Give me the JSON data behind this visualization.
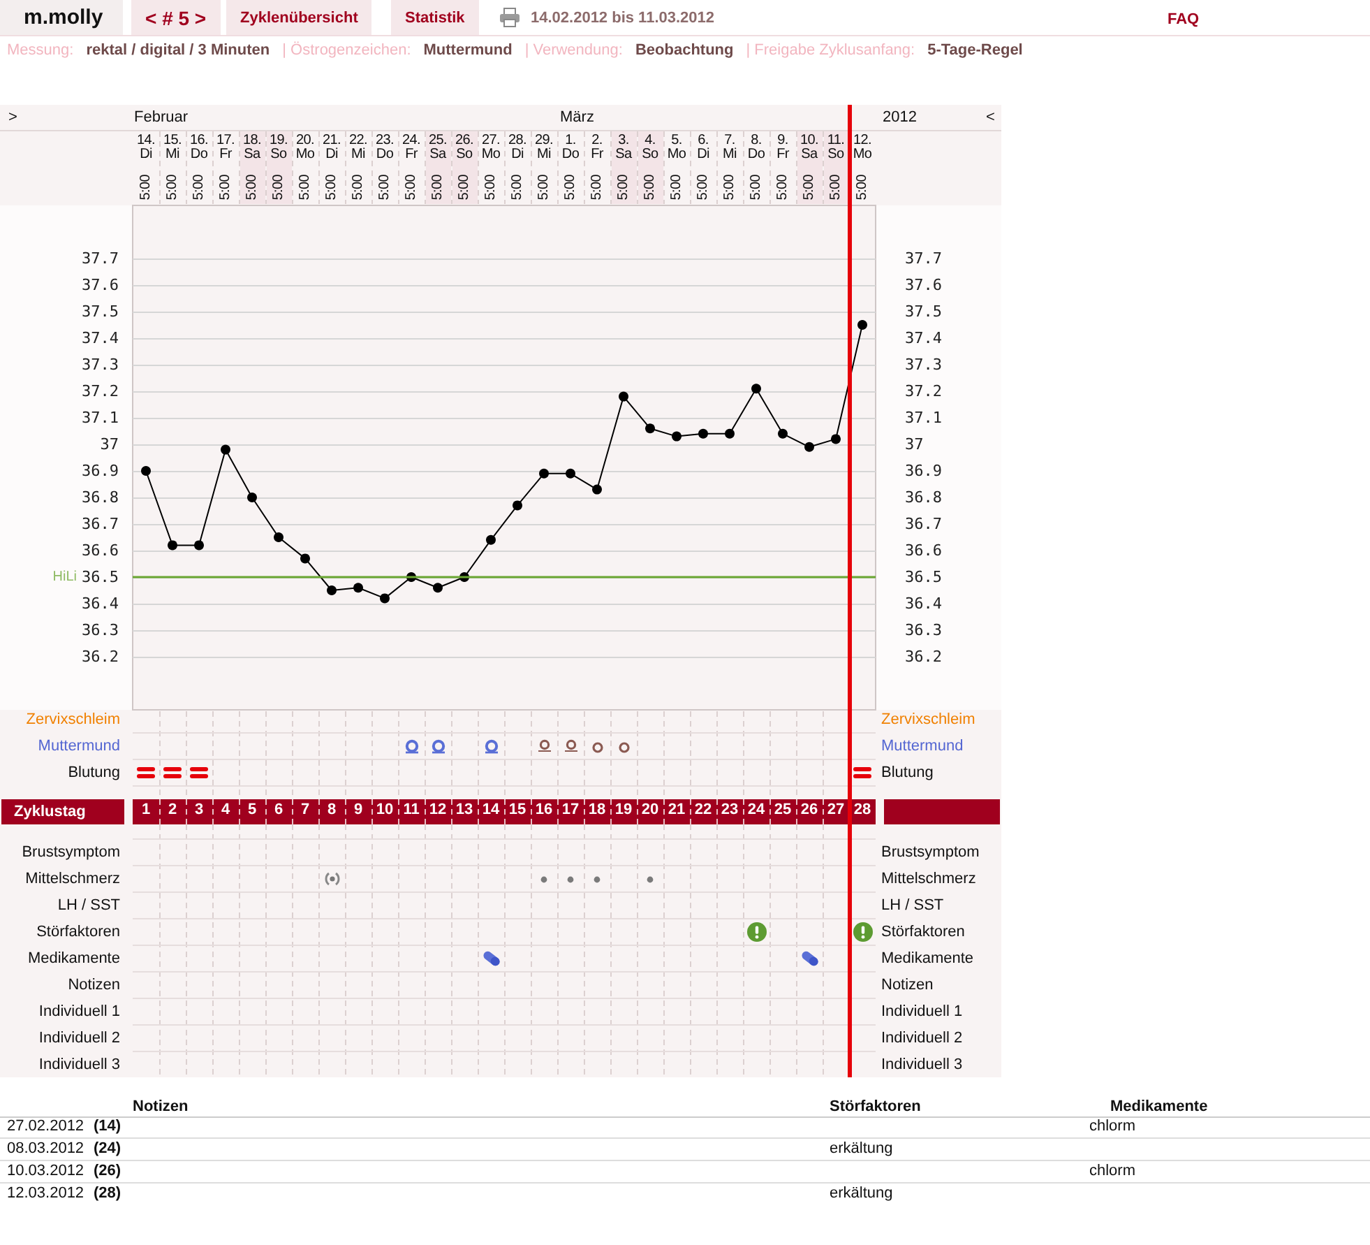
{
  "chart_data": {
    "type": "line",
    "title": "m.molly",
    "subtitle": "14.02.2012 bis 11.03.2012",
    "x": [
      1,
      2,
      3,
      4,
      5,
      6,
      7,
      8,
      9,
      10,
      11,
      12,
      13,
      14,
      15,
      16,
      17,
      18,
      19,
      20,
      21,
      22,
      23,
      24,
      25,
      26,
      27,
      28
    ],
    "values": [
      36.9,
      36.62,
      36.62,
      36.98,
      36.8,
      36.65,
      36.57,
      36.45,
      36.46,
      36.42,
      36.5,
      36.46,
      36.5,
      36.64,
      36.77,
      36.89,
      36.89,
      36.83,
      37.18,
      37.06,
      37.03,
      37.04,
      37.04,
      37.21,
      37.04,
      36.99,
      37.02,
      37.45
    ],
    "color": "#000000",
    "marker": "circle",
    "line_style": "solid",
    "xlim": [
      0.5,
      28.5
    ],
    "xticks": [
      1,
      2,
      3,
      4,
      5,
      6,
      7,
      8,
      9,
      10,
      11,
      12,
      13,
      14,
      15,
      16,
      17,
      18,
      19,
      20,
      21,
      22,
      23,
      24,
      25,
      26,
      27,
      28
    ],
    "x2lim": [
      "2012-02-13T17:00",
      "2012-03-12T17:00"
    ],
    "x2ticks": [
      {
        "value": "2012-02-14T05:00",
        "label": "14. Di 5:00"
      },
      {
        "value": "2012-02-15T05:00",
        "label": "15. Mi 5:00"
      },
      {
        "value": "2012-02-16T05:00",
        "label": "16. Do 5:00"
      },
      {
        "value": "2012-02-17T05:00",
        "label": "17. Fr 5:00"
      },
      {
        "value": "2012-02-18T05:00",
        "label": "18. Sa 5:00"
      },
      {
        "value": "2012-02-19T05:00",
        "label": "19. So 5:00"
      },
      {
        "value": "2012-02-20T05:00",
        "label": "20. Mo 5:00"
      },
      {
        "value": "2012-02-21T05:00",
        "label": "21. Di 5:00"
      },
      {
        "value": "2012-02-22T05:00",
        "label": "22. Mi 5:00"
      },
      {
        "value": "2012-02-23T05:00",
        "label": "23. Do 5:00"
      },
      {
        "value": "2012-02-24T05:00",
        "label": "24. Fr 5:00"
      },
      {
        "value": "2012-02-25T05:00",
        "label": "25. Sa 5:00"
      },
      {
        "value": "2012-02-26T05:00",
        "label": "26. So 5:00"
      },
      {
        "value": "2012-02-27T05:00",
        "label": "27. Mo 5:00"
      },
      {
        "value": "2012-02-28T05:00",
        "label": "28. Di 5:00"
      },
      {
        "value": "2012-02-29T05:00",
        "label": "29. Mi 5:00"
      },
      {
        "value": "2012-03-01T05:00",
        "label": "1. Do 5:00"
      },
      {
        "value": "2012-03-02T05:00",
        "label": "2. Fr 5:00"
      },
      {
        "value": "2012-03-03T05:00",
        "label": "3. Sa 5:00"
      },
      {
        "value": "2012-03-04T05:00",
        "label": "4. So 5:00"
      },
      {
        "value": "2012-03-05T05:00",
        "label": "5. Mo 5:00"
      },
      {
        "value": "2012-03-06T05:00",
        "label": "6. Di 5:00"
      },
      {
        "value": "2012-03-07T05:00",
        "label": "7. Mi 5:00"
      },
      {
        "value": "2012-03-08T05:00",
        "label": "8. Do 5:00"
      },
      {
        "value": "2012-03-09T05:00",
        "label": "9. Fr 5:00"
      },
      {
        "value": "2012-03-10T05:00",
        "label": "10. Sa 5:00"
      },
      {
        "value": "2012-03-11T05:00",
        "label": "11. So 5:00"
      },
      {
        "value": "2012-03-12T05:00",
        "label": "12. Mo 5:00"
      }
    ],
    "ylim": [
      36.0,
      37.9
    ],
    "yticks": [
      36.2,
      36.3,
      36.4,
      36.5,
      36.6,
      36.7,
      36.8,
      36.9,
      37,
      37.1,
      37.2,
      37.3,
      37.4,
      37.5,
      37.6,
      37.7
    ],
    "y2lim": [
      36.0,
      37.9
    ],
    "y2ticks": [
      36.2,
      36.3,
      36.4,
      36.5,
      36.6,
      36.7,
      36.8,
      36.9,
      37,
      37.1,
      37.2,
      37.3,
      37.4,
      37.5,
      37.6,
      37.7
    ],
    "grid": "y",
    "ref_lines": [
      {
        "axis": "y",
        "value": 36.5,
        "label": "HiLi",
        "color": "#6aa632"
      },
      {
        "axis": "x",
        "value": 27.5,
        "color": "#e6000a"
      }
    ],
    "annotations": [
      "< # 5 >",
      "Zyklenübersicht",
      "Statistik",
      "FAQ",
      "Messung:",
      "rektal / digital / 3 Minuten",
      "| Östrogenzeichen:",
      "Muttermund",
      "| Verwendung:",
      "Beobachtung",
      "| Freigabe Zyklusanfang:",
      "5-Tage-Regel",
      ">",
      "Februar",
      "März",
      "2012",
      "<",
      "Zervixschleim",
      "Muttermund",
      "Blutung",
      "Zyklustag",
      "Brustsymptom",
      "Mittelschmerz",
      "LH / SST",
      "Störfaktoren",
      "Medikamente",
      "Notizen",
      "Individuell 1",
      "Individuell 2",
      "Individuell 3",
      "Notizen",
      "Störfaktoren",
      "Medikamente",
      "27.02.2012",
      "(14)",
      "chlorm",
      "08.03.2012",
      "(24)",
      "erkältung",
      "10.03.2012",
      "(26)",
      "chlorm",
      "12.03.2012",
      "(28)",
      "erkältung"
    ]
  }
}
